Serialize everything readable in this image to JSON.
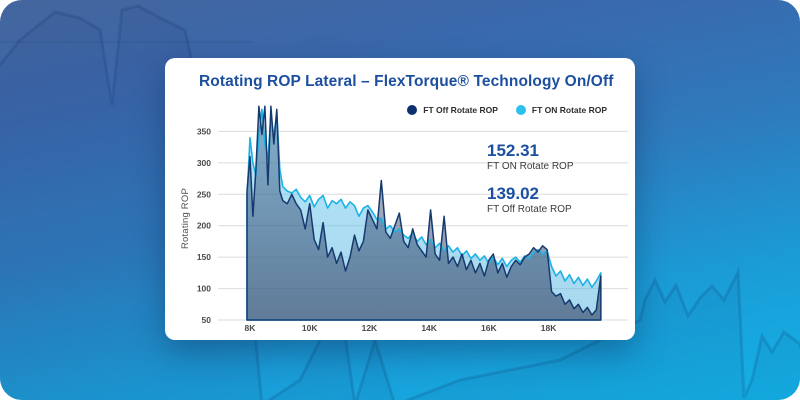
{
  "background": {
    "gradient_top": "#44659D",
    "gradient_bottom": "#13B2E7",
    "watermark": "faint-line-chart-silhouette"
  },
  "card": {
    "title": "Rotating ROP Lateral – FlexTorque® Technology On/Off",
    "legend": [
      {
        "label": "FT Off Rotate ROP",
        "color": "#0D3070"
      },
      {
        "label": "FT ON Rotate ROP",
        "color": "#2BC1EE"
      }
    ],
    "stats": [
      {
        "value": "152.31",
        "label": "FT ON Rotate ROP"
      },
      {
        "value": "139.02",
        "label": "FT Off Rotate ROP"
      }
    ]
  },
  "chart_data": {
    "type": "area",
    "title": "Rotating ROP Lateral – FlexTorque® Technology On/Off",
    "xlabel": "",
    "ylabel": "Rotating ROP",
    "x_unit": "measured depth (ft, thousands)",
    "xlim": [
      6.93,
      20.66
    ],
    "ylim": [
      50,
      400
    ],
    "grid": true,
    "legend_position": "top-right",
    "xticks": {
      "values": [
        8,
        10,
        12,
        14,
        16,
        18
      ],
      "labels": [
        "8K",
        "10K",
        "12K",
        "14K",
        "16K",
        "18K"
      ]
    },
    "yticks": [
      350,
      300,
      250,
      200,
      150,
      100,
      50
    ],
    "x": [
      7.9,
      8.0,
      8.1,
      8.2,
      8.3,
      8.4,
      8.5,
      8.6,
      8.7,
      8.8,
      8.9,
      9.0,
      9.1,
      9.25,
      9.4,
      9.55,
      9.7,
      9.85,
      10.0,
      10.15,
      10.3,
      10.45,
      10.6,
      10.75,
      10.9,
      11.05,
      11.2,
      11.35,
      11.5,
      11.65,
      11.8,
      11.95,
      12.1,
      12.25,
      12.4,
      12.55,
      12.7,
      12.85,
      13.0,
      13.15,
      13.3,
      13.45,
      13.6,
      13.75,
      13.9,
      14.05,
      14.2,
      14.35,
      14.5,
      14.65,
      14.8,
      14.95,
      15.1,
      15.25,
      15.4,
      15.55,
      15.7,
      15.85,
      16.0,
      16.15,
      16.3,
      16.45,
      16.6,
      16.75,
      16.9,
      17.05,
      17.2,
      17.35,
      17.5,
      17.65,
      17.8,
      17.95,
      18.1,
      18.25,
      18.4,
      18.55,
      18.7,
      18.85,
      19.0,
      19.15,
      19.3,
      19.45,
      19.6,
      19.75
    ],
    "series": [
      {
        "name": "FT Off Rotate ROP",
        "color": "#16396E",
        "average": 139.02,
        "values": [
          255,
          310,
          215,
          290,
          390,
          345,
          390,
          265,
          390,
          330,
          385,
          255,
          240,
          235,
          250,
          235,
          225,
          195,
          235,
          178,
          162,
          205,
          150,
          165,
          140,
          158,
          128,
          150,
          185,
          160,
          175,
          225,
          210,
          195,
          272,
          190,
          180,
          200,
          220,
          175,
          165,
          195,
          170,
          160,
          150,
          225,
          155,
          145,
          215,
          140,
          150,
          135,
          155,
          130,
          145,
          125,
          140,
          120,
          145,
          155,
          125,
          140,
          118,
          135,
          145,
          138,
          150,
          155,
          165,
          158,
          168,
          162,
          95,
          88,
          92,
          75,
          82,
          68,
          75,
          62,
          70,
          58,
          66,
          120
        ]
      },
      {
        "name": "FT ON Rotate ROP",
        "color": "#1DB2E6",
        "average": 152.31,
        "values": [
          245,
          340,
          300,
          280,
          345,
          385,
          330,
          305,
          375,
          340,
          380,
          290,
          262,
          255,
          252,
          258,
          245,
          238,
          248,
          230,
          242,
          248,
          228,
          240,
          235,
          242,
          228,
          238,
          232,
          215,
          228,
          232,
          222,
          210,
          212,
          195,
          200,
          190,
          195,
          185,
          180,
          188,
          175,
          182,
          170,
          178,
          165,
          172,
          160,
          168,
          158,
          165,
          152,
          160,
          148,
          155,
          145,
          152,
          140,
          150,
          138,
          148,
          135,
          145,
          150,
          142,
          152,
          148,
          158,
          162,
          155,
          160,
          135,
          120,
          128,
          112,
          122,
          108,
          118,
          105,
          115,
          102,
          112,
          125
        ]
      }
    ]
  }
}
